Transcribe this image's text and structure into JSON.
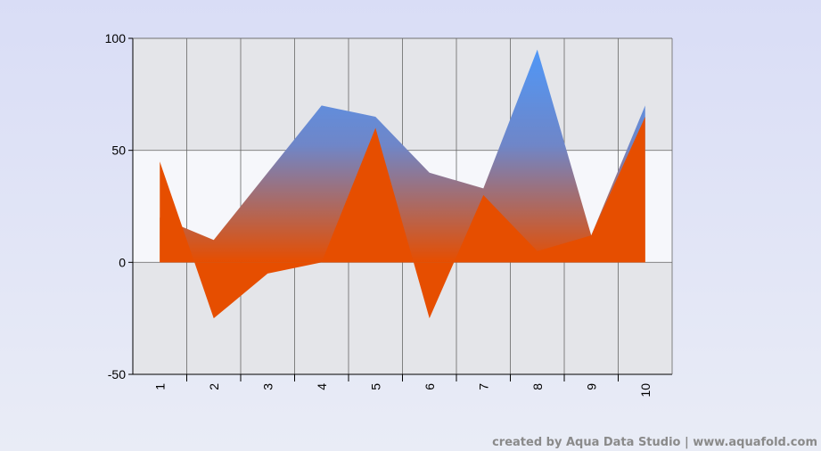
{
  "chart_data": {
    "type": "area",
    "categories": [
      "1",
      "2",
      "3",
      "4",
      "5",
      "6",
      "7",
      "8",
      "9",
      "10"
    ],
    "series": [
      {
        "values": [
          20,
          10,
          40,
          70,
          65,
          40,
          33,
          95,
          12,
          70
        ],
        "color": "#4f97f7"
      },
      {
        "values": [
          45,
          -25,
          -5,
          0,
          60,
          -25,
          30,
          5,
          12,
          65
        ],
        "color": "#e64e00"
      }
    ],
    "ylim": [
      -50,
      100
    ],
    "yticks": [
      -50,
      0,
      50,
      100
    ],
    "grid": true,
    "band_colors": [
      "#e4e5e9",
      "#f6f7fb"
    ]
  },
  "footer": {
    "credit": "created by Aqua Data Studio | www.aquafold.com"
  }
}
